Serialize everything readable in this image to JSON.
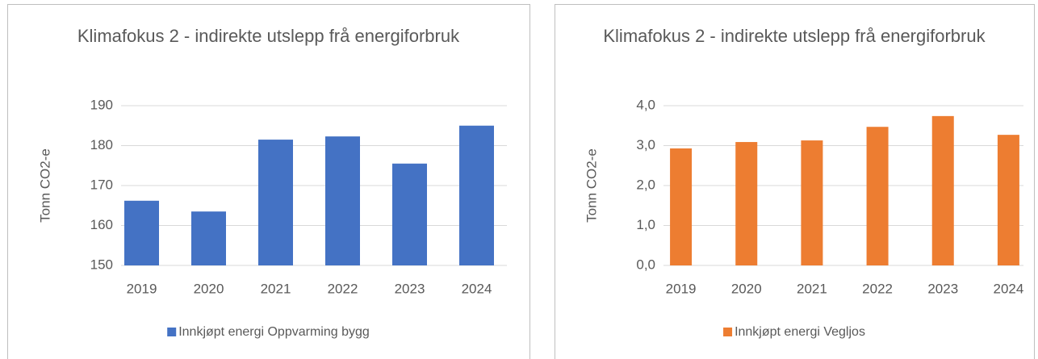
{
  "chart_data": [
    {
      "type": "bar",
      "title": "Klimafokus 2 - indirekte utslepp frå energiforbruk",
      "ylabel": "Tonn CO2-e",
      "categories": [
        "2019",
        "2020",
        "2021",
        "2022",
        "2023",
        "2024"
      ],
      "series": [
        {
          "name": "Innkjøpt energi Oppvarming bygg",
          "color": "#4472c4",
          "values": [
            166.2,
            163.5,
            181.5,
            182.3,
            175.5,
            185.0
          ]
        }
      ],
      "ylim": [
        150,
        190
      ],
      "yticks": [
        150,
        160,
        170,
        180,
        190
      ],
      "grid": true,
      "legend": "bottom"
    },
    {
      "type": "bar",
      "title": "Klimafokus 2 - indirekte utslepp frå energiforbruk",
      "ylabel": "Tonn CO2-e",
      "categories": [
        "2019",
        "2020",
        "2021",
        "2022",
        "2023",
        "2024"
      ],
      "series": [
        {
          "name": "Innkjøpt energi Vegljos",
          "color": "#ed7d31",
          "values": [
            2.93,
            3.09,
            3.13,
            3.47,
            3.74,
            3.27
          ]
        }
      ],
      "ylim": [
        0,
        4
      ],
      "yticks": [
        {
          "value": 0,
          "label": "0,0"
        },
        {
          "value": 1,
          "label": "1,0"
        },
        {
          "value": 2,
          "label": "2,0"
        },
        {
          "value": 3,
          "label": "3,0"
        },
        {
          "value": 4,
          "label": "4,0"
        }
      ],
      "grid": true,
      "legend": "bottom"
    }
  ]
}
